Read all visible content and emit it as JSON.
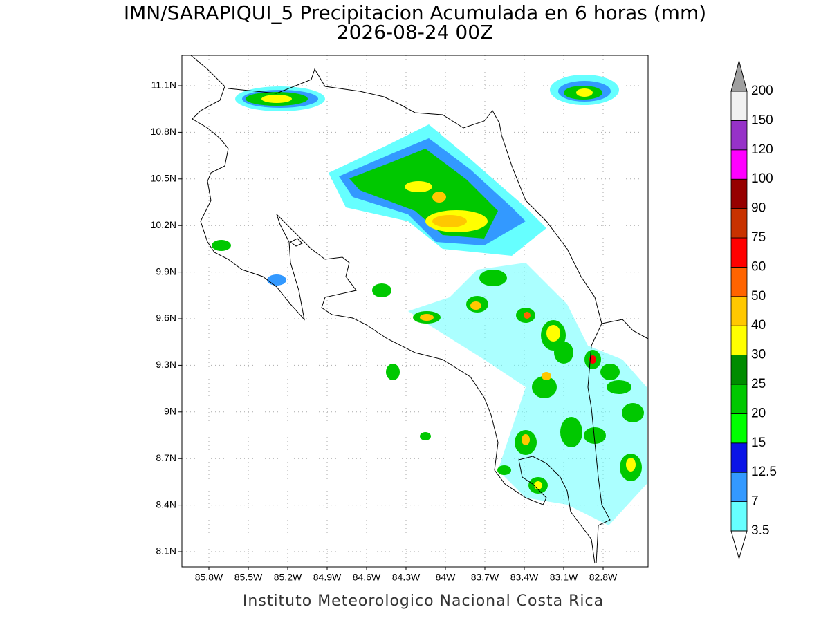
{
  "title": "IMN/SARAPIQUI_5 Precipitacion Acumulada en 6 horas (mm)",
  "subtitle": "2026-08-24 00Z",
  "map": {
    "lat_ticks": [
      "11.1N",
      "10.8N",
      "10.5N",
      "10.2N",
      "9.9N",
      "9.6N",
      "9.3N",
      "9N",
      "8.7N",
      "8.4N",
      "8.1N"
    ],
    "lon_ticks": [
      "85.8W",
      "85.5W",
      "85.2W",
      "84.9W",
      "84.6W",
      "84.3W",
      "84W",
      "83.7W",
      "83.4W",
      "83.1W",
      "82.8W"
    ]
  },
  "colorbar": {
    "labels": [
      "3.5",
      "7",
      "12.5",
      "15",
      "20",
      "25",
      "30",
      "40",
      "50",
      "60",
      "75",
      "90",
      "100",
      "120",
      "150",
      "200"
    ],
    "colors": [
      "#66ffff",
      "#3399ff",
      "#0a14e6",
      "#00ff00",
      "#00c800",
      "#008c00",
      "#ffff00",
      "#ffc800",
      "#ff6400",
      "#ff0000",
      "#c83200",
      "#960000",
      "#ff00ff",
      "#9632c8",
      "#f2f2f2"
    ],
    "below_color": "#ffffff",
    "above_color": "#a0a0a0"
  },
  "footer": "Instituto Meteorologico Nacional Costa Rica"
}
